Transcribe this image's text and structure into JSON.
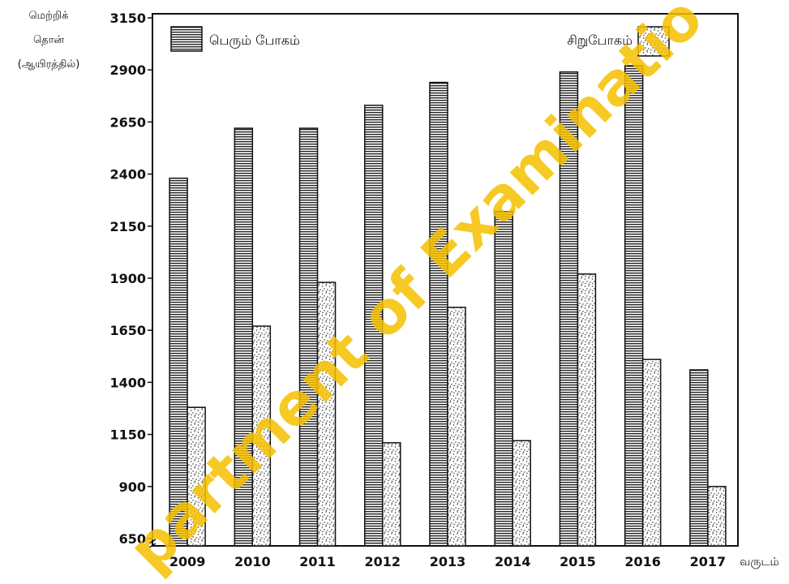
{
  "chart_data": {
    "type": "bar",
    "categories": [
      "2009",
      "2010",
      "2011",
      "2012",
      "2013",
      "2014",
      "2015",
      "2016",
      "2017"
    ],
    "series": [
      {
        "name": "பெரும் போகம்",
        "pattern": "horizontal-stripes",
        "values": [
          2380,
          2620,
          2620,
          2730,
          2840,
          2220,
          2890,
          2920,
          1460
        ]
      },
      {
        "name": "சிறுபோகம்",
        "pattern": "dots",
        "values": [
          1280,
          1670,
          1880,
          1110,
          1760,
          1120,
          1920,
          1510,
          900
        ]
      }
    ],
    "ylabel_lines": [
      "மெற்றிக்",
      "தொன்",
      "(ஆயிரத்தில்)"
    ],
    "xlabel": "வருடம்",
    "yticks": [
      650,
      900,
      1150,
      1400,
      1650,
      1900,
      2150,
      2400,
      2650,
      2900,
      3150
    ],
    "ylim": [
      650,
      3150
    ],
    "axis_break": true,
    "legend_placement": "top",
    "grid": false
  },
  "watermark": "partment of Examinatio",
  "colors": {
    "bar_fill": "#ffffff",
    "bar_stroke": "#111111",
    "watermark": "#f5c000"
  }
}
